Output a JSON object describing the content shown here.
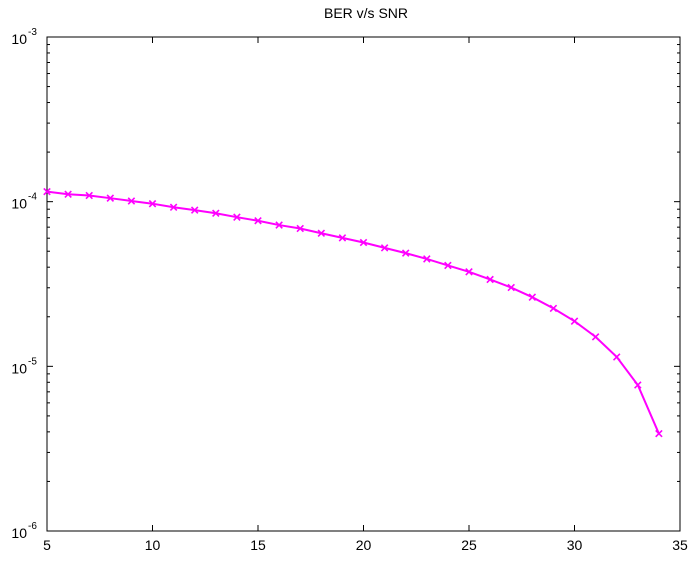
{
  "chart_data": {
    "type": "line",
    "title": "BER v/s SNR",
    "xlabel": "",
    "ylabel": "",
    "xscale": "linear",
    "yscale": "log",
    "xlim": [
      5,
      35
    ],
    "ylim": [
      1e-06,
      0.001
    ],
    "grid": false,
    "legend": "none",
    "x_ticks": [
      5,
      10,
      15,
      20,
      25,
      30,
      35
    ],
    "y_ticks": [
      {
        "value": 1e-06,
        "base": "10",
        "exp": "-6"
      },
      {
        "value": 1e-05,
        "base": "10",
        "exp": "-5"
      },
      {
        "value": 0.0001,
        "base": "10",
        "exp": "-4"
      },
      {
        "value": 0.001,
        "base": "10",
        "exp": "-3"
      }
    ],
    "series": [
      {
        "color": "#ff00ff",
        "marker": "x",
        "x": [
          5,
          6,
          7,
          8,
          9,
          10,
          11,
          12,
          13,
          14,
          15,
          16,
          17,
          18,
          19,
          20,
          21,
          22,
          23,
          24,
          25,
          26,
          27,
          28,
          29,
          30,
          31,
          32,
          33,
          34
        ],
        "y": [
          0.000115,
          0.000111,
          0.000109,
          0.000105,
          0.000101,
          9.72e-05,
          9.25e-05,
          8.89e-05,
          8.5e-05,
          8.05e-05,
          7.66e-05,
          7.21e-05,
          6.87e-05,
          6.43e-05,
          6.03e-05,
          5.65e-05,
          5.24e-05,
          4.87e-05,
          4.49e-05,
          4.1e-05,
          3.75e-05,
          3.37e-05,
          3.01e-05,
          2.63e-05,
          2.25e-05,
          1.88e-05,
          1.51e-05,
          1.14e-05,
          7.7e-06,
          3.9e-06
        ]
      }
    ]
  }
}
